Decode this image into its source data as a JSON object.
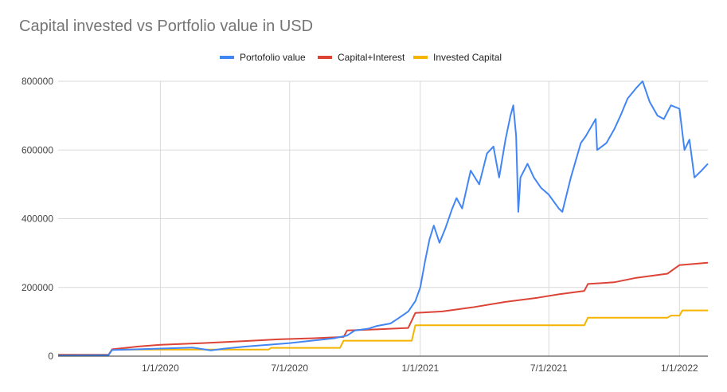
{
  "chart_data": {
    "type": "line",
    "title": "Capital invested vs Portfolio value in USD",
    "xlabel": "",
    "ylabel": "",
    "x_range": [
      "2019-08-10",
      "2022-02-10"
    ],
    "ylim": [
      0,
      800000
    ],
    "y_ticks": [
      0,
      200000,
      400000,
      600000,
      800000
    ],
    "y_tick_labels": [
      "0",
      "200000",
      "400000",
      "600000",
      "800000"
    ],
    "x_ticks": [
      "2020-01-01",
      "2020-07-01",
      "2021-01-01",
      "2021-07-01",
      "2022-01-01"
    ],
    "x_tick_labels": [
      "1/1/2020",
      "7/1/2020",
      "1/1/2021",
      "7/1/2021",
      "1/1/2022"
    ],
    "grid": true,
    "legend_position": "top-center",
    "series": [
      {
        "name": "Portofolio value",
        "color": "#4285f4",
        "points": [
          [
            "2019-08-10",
            2000
          ],
          [
            "2019-10-20",
            3000
          ],
          [
            "2019-10-25",
            18000
          ],
          [
            "2019-12-01",
            20000
          ],
          [
            "2020-01-01",
            22000
          ],
          [
            "2020-02-15",
            25000
          ],
          [
            "2020-03-12",
            17000
          ],
          [
            "2020-04-01",
            22000
          ],
          [
            "2020-05-01",
            28000
          ],
          [
            "2020-06-01",
            33000
          ],
          [
            "2020-07-01",
            38000
          ],
          [
            "2020-08-01",
            45000
          ],
          [
            "2020-09-01",
            52000
          ],
          [
            "2020-09-20",
            60000
          ],
          [
            "2020-10-01",
            75000
          ],
          [
            "2020-10-20",
            80000
          ],
          [
            "2020-11-01",
            88000
          ],
          [
            "2020-11-20",
            95000
          ],
          [
            "2020-12-01",
            110000
          ],
          [
            "2020-12-15",
            130000
          ],
          [
            "2020-12-25",
            160000
          ],
          [
            "2021-01-01",
            200000
          ],
          [
            "2021-01-08",
            280000
          ],
          [
            "2021-01-14",
            340000
          ],
          [
            "2021-01-20",
            380000
          ],
          [
            "2021-01-28",
            330000
          ],
          [
            "2021-02-05",
            370000
          ],
          [
            "2021-02-15",
            430000
          ],
          [
            "2021-02-21",
            460000
          ],
          [
            "2021-03-01",
            430000
          ],
          [
            "2021-03-13",
            540000
          ],
          [
            "2021-03-25",
            500000
          ],
          [
            "2021-04-05",
            590000
          ],
          [
            "2021-04-14",
            610000
          ],
          [
            "2021-04-22",
            520000
          ],
          [
            "2021-05-01",
            630000
          ],
          [
            "2021-05-08",
            700000
          ],
          [
            "2021-05-12",
            730000
          ],
          [
            "2021-05-16",
            640000
          ],
          [
            "2021-05-19",
            420000
          ],
          [
            "2021-05-22",
            520000
          ],
          [
            "2021-06-01",
            560000
          ],
          [
            "2021-06-10",
            520000
          ],
          [
            "2021-06-20",
            490000
          ],
          [
            "2021-07-01",
            470000
          ],
          [
            "2021-07-15",
            430000
          ],
          [
            "2021-07-20",
            420000
          ],
          [
            "2021-08-01",
            520000
          ],
          [
            "2021-08-15",
            620000
          ],
          [
            "2021-08-22",
            640000
          ],
          [
            "2021-09-05",
            690000
          ],
          [
            "2021-09-07",
            600000
          ],
          [
            "2021-09-20",
            620000
          ],
          [
            "2021-10-01",
            660000
          ],
          [
            "2021-10-10",
            700000
          ],
          [
            "2021-10-20",
            750000
          ],
          [
            "2021-11-01",
            780000
          ],
          [
            "2021-11-10",
            800000
          ],
          [
            "2021-11-20",
            740000
          ],
          [
            "2021-12-01",
            700000
          ],
          [
            "2021-12-10",
            690000
          ],
          [
            "2021-12-20",
            730000
          ],
          [
            "2022-01-01",
            720000
          ],
          [
            "2022-01-08",
            600000
          ],
          [
            "2022-01-15",
            630000
          ],
          [
            "2022-01-22",
            520000
          ],
          [
            "2022-02-01",
            540000
          ],
          [
            "2022-02-10",
            560000
          ]
        ]
      },
      {
        "name": "Capital+Interest",
        "color": "#db4437",
        "points": [
          [
            "2019-08-10",
            4000
          ],
          [
            "2019-10-20",
            4000
          ],
          [
            "2019-10-25",
            20000
          ],
          [
            "2019-12-01",
            28000
          ],
          [
            "2020-01-01",
            33000
          ],
          [
            "2020-03-01",
            38000
          ],
          [
            "2020-05-01",
            44000
          ],
          [
            "2020-06-15",
            49000
          ],
          [
            "2020-08-01",
            52000
          ],
          [
            "2020-09-15",
            56000
          ],
          [
            "2020-09-20",
            75000
          ],
          [
            "2020-11-01",
            78000
          ],
          [
            "2020-12-15",
            82000
          ],
          [
            "2020-12-25",
            126000
          ],
          [
            "2021-02-01",
            130000
          ],
          [
            "2021-03-15",
            142000
          ],
          [
            "2021-05-01",
            158000
          ],
          [
            "2021-06-15",
            170000
          ],
          [
            "2021-07-15",
            180000
          ],
          [
            "2021-08-20",
            190000
          ],
          [
            "2021-08-25",
            210000
          ],
          [
            "2021-10-01",
            215000
          ],
          [
            "2021-11-01",
            228000
          ],
          [
            "2021-12-15",
            240000
          ],
          [
            "2022-01-01",
            265000
          ],
          [
            "2022-02-10",
            272000
          ]
        ]
      },
      {
        "name": "Invested Capital",
        "color": "#f4b400",
        "points": [
          [
            "2019-08-10",
            4000
          ],
          [
            "2019-10-20",
            4000
          ],
          [
            "2019-10-25",
            19000
          ],
          [
            "2020-06-01",
            19000
          ],
          [
            "2020-06-05",
            24000
          ],
          [
            "2020-09-10",
            24000
          ],
          [
            "2020-09-15",
            45000
          ],
          [
            "2020-12-20",
            45000
          ],
          [
            "2020-12-25",
            90000
          ],
          [
            "2021-08-20",
            90000
          ],
          [
            "2021-08-25",
            112000
          ],
          [
            "2021-12-15",
            112000
          ],
          [
            "2021-12-20",
            118000
          ],
          [
            "2022-01-01",
            118000
          ],
          [
            "2022-01-05",
            133000
          ],
          [
            "2022-02-10",
            133000
          ]
        ]
      }
    ]
  }
}
